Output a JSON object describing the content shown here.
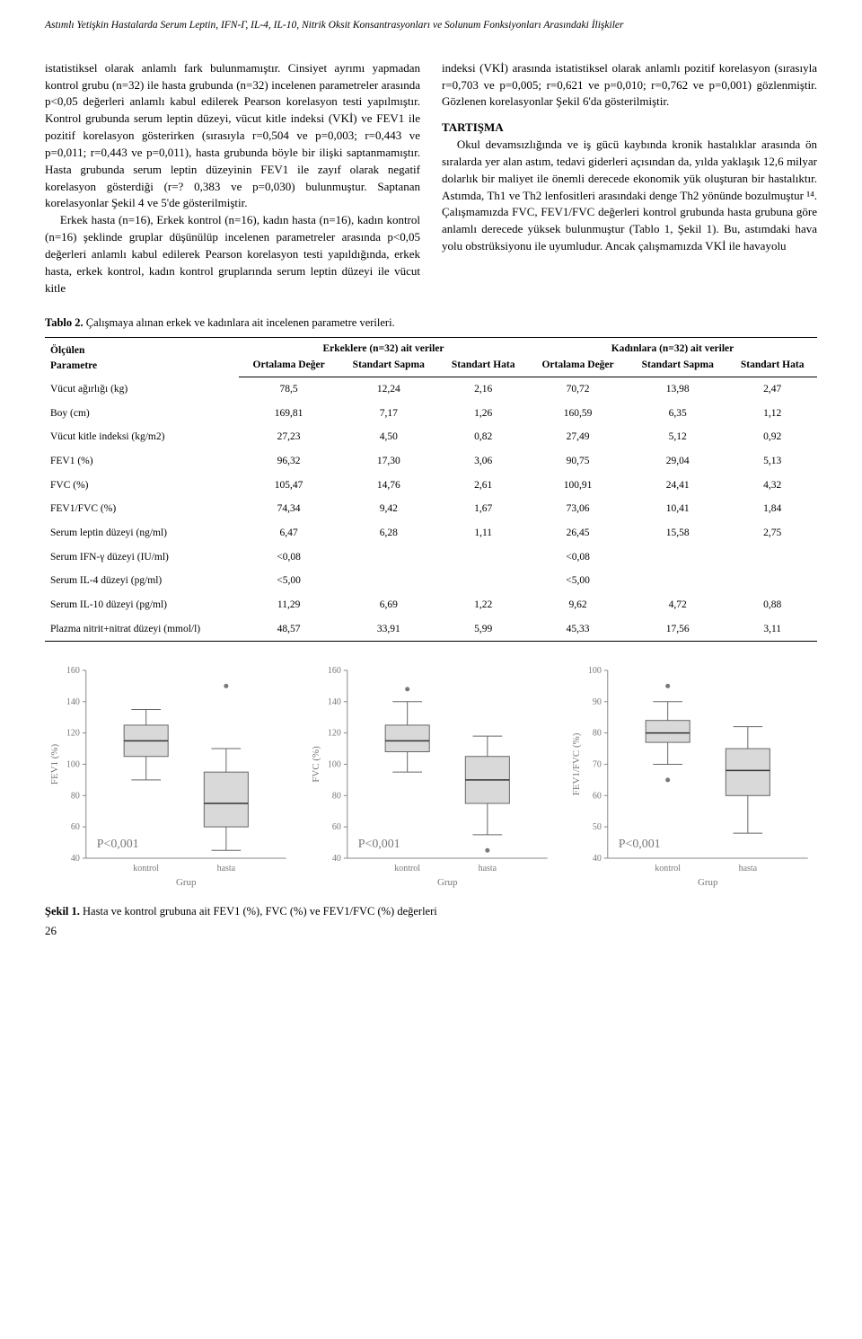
{
  "header": {
    "running_title": "Astımlı Yetişkin Hastalarda Serum Leptin, IFN-Γ, IL-4, IL-10, Nitrik Oksit Konsantrasyonları ve Solunum Fonksiyonları Arasındaki İlişkiler"
  },
  "body": {
    "left_p1": "istatistiksel olarak anlamlı fark bulunmamıştır. Cinsiyet ayrımı yapmadan kontrol grubu (n=32) ile hasta grubunda (n=32) incelenen parametreler arasında p<0,05 değerleri anlamlı kabul edilerek Pearson korelasyon testi yapılmıştır. Kontrol grubunda serum leptin düzeyi, vücut kitle indeksi (VKİ) ve FEV1 ile pozitif korelasyon gösterirken (sırasıyla r=0,504 ve p=0,003; r=0,443 ve p=0,011; r=0,443 ve p=0,011), hasta grubunda böyle bir ilişki saptanmamıştır. Hasta grubunda serum leptin düzeyinin FEV1 ile zayıf olarak negatif korelasyon gösterdiği (r=? 0,383 ve p=0,030) bulunmuştur. Saptanan korelasyonlar Şekil 4 ve 5'de gösterilmiştir.",
    "left_p2": "Erkek hasta (n=16), Erkek kontrol (n=16), kadın hasta (n=16), kadın kontrol (n=16) şeklinde gruplar düşünülüp incelenen parametreler arasında p<0,05 değerleri anlamlı kabul edilerek Pearson korelasyon testi yapıldığında, erkek hasta, erkek kontrol, kadın kontrol gruplarında serum leptin düzeyi ile vücut kitle",
    "right_p1": "indeksi (VKİ) arasında istatistiksel olarak anlamlı pozitif korelasyon (sırasıyla r=0,703 ve p=0,005; r=0,621 ve p=0,010; r=0,762 ve p=0,001) gözlenmiştir. Gözlenen korelasyonlar Şekil 6'da gösterilmiştir.",
    "discussion_head": "TARTIŞMA",
    "right_p2": "Okul devamsızlığında ve iş gücü kaybında kronik hastalıklar arasında ön sıralarda yer alan astım, tedavi giderleri açısından da, yılda yaklaşık 12,6 milyar dolarlık bir maliyet ile önemli derecede ekonomik yük oluşturan bir hastalıktır. Astımda, Th1 ve Th2 lenfositleri arasındaki denge Th2 yönünde bozulmuştur ¹⁴. Çalışmamızda FVC, FEV1/FVC değerleri kontrol grubunda hasta grubuna göre anlamlı derecede yüksek bulunmuştur (Tablo 1, Şekil 1). Bu, astımdaki hava yolu obstrüksiyonu ile uyumludur. Ancak çalışmamızda VKİ ile havayolu"
  },
  "table2": {
    "caption_label": "Tablo 2.",
    "caption_text": " Çalışmaya alınan erkek ve kadınlara ait incelenen parametre verileri.",
    "olculen": "Ölçülen",
    "parametre": "Parametre",
    "group_male": "Erkeklere (n=32) ait veriler",
    "group_female": "Kadınlara (n=32) ait veriler",
    "col_mean": "Ortalama Değer",
    "col_sd": "Standart Sapma",
    "col_se": "Standart Hata",
    "rows": [
      {
        "param": "Vücut ağırlığı (kg)",
        "m_mean": "78,5",
        "m_sd": "12,24",
        "m_se": "2,16",
        "f_mean": "70,72",
        "f_sd": "13,98",
        "f_se": "2,47"
      },
      {
        "param": "Boy (cm)",
        "m_mean": "169,81",
        "m_sd": "7,17",
        "m_se": "1,26",
        "f_mean": "160,59",
        "f_sd": "6,35",
        "f_se": "1,12"
      },
      {
        "param": "Vücut kitle indeksi (kg/m2)",
        "m_mean": "27,23",
        "m_sd": "4,50",
        "m_se": "0,82",
        "f_mean": "27,49",
        "f_sd": "5,12",
        "f_se": "0,92"
      },
      {
        "param": "FEV1 (%)",
        "m_mean": "96,32",
        "m_sd": "17,30",
        "m_se": "3,06",
        "f_mean": "90,75",
        "f_sd": "29,04",
        "f_se": "5,13"
      },
      {
        "param": "FVC (%)",
        "m_mean": "105,47",
        "m_sd": "14,76",
        "m_se": "2,61",
        "f_mean": "100,91",
        "f_sd": "24,41",
        "f_se": "4,32"
      },
      {
        "param": "FEV1/FVC (%)",
        "m_mean": "74,34",
        "m_sd": "9,42",
        "m_se": "1,67",
        "f_mean": "73,06",
        "f_sd": "10,41",
        "f_se": "1,84"
      },
      {
        "param": "Serum leptin düzeyi (ng/ml)",
        "m_mean": "6,47",
        "m_sd": "6,28",
        "m_se": "1,11",
        "f_mean": "26,45",
        "f_sd": "15,58",
        "f_se": "2,75"
      },
      {
        "param": "Serum IFN-γ düzeyi (IU/ml)",
        "m_mean": "<0,08",
        "m_sd": "",
        "m_se": "",
        "f_mean": "<0,08",
        "f_sd": "",
        "f_se": ""
      },
      {
        "param": "Serum IL-4 düzeyi (pg/ml)",
        "m_mean": "<5,00",
        "m_sd": "",
        "m_se": "",
        "f_mean": "<5,00",
        "f_sd": "",
        "f_se": ""
      },
      {
        "param": "Serum IL-10 düzeyi (pg/ml)",
        "m_mean": "11,29",
        "m_sd": "6,69",
        "m_se": "1,22",
        "f_mean": "9,62",
        "f_sd": "4,72",
        "f_se": "0,88"
      },
      {
        "param": "Plazma nitrit+nitrat düzeyi (mmol/l)",
        "m_mean": "48,57",
        "m_sd": "33,91",
        "m_se": "5,99",
        "f_mean": "45,33",
        "f_sd": "17,56",
        "f_se": "3,11"
      }
    ]
  },
  "charts": {
    "common": {
      "box_fill": "#d9d9d9",
      "box_stroke": "#666666",
      "median_stroke": "#333333",
      "whisker_stroke": "#666666",
      "axis_stroke": "#888888",
      "outlier_fill": "#777777",
      "label_color": "#777777",
      "p_label": "P<0,001",
      "p_fontsize": 14,
      "axis_fontsize": 10,
      "x_label": "Grup",
      "x_cat1": "kontrol",
      "x_cat2": "hasta"
    },
    "panels": [
      {
        "y_label": "FEV1 (%)",
        "ylim": [
          40,
          160
        ],
        "ytick_step": 20,
        "boxes": [
          {
            "q1": 105,
            "median": 115,
            "q3": 125,
            "wlo": 90,
            "whi": 135,
            "outliers": []
          },
          {
            "q1": 60,
            "median": 75,
            "q3": 95,
            "wlo": 45,
            "whi": 110,
            "outliers": [
              150
            ]
          }
        ]
      },
      {
        "y_label": "FVC (%)",
        "ylim": [
          40,
          160
        ],
        "ytick_step": 20,
        "boxes": [
          {
            "q1": 108,
            "median": 115,
            "q3": 125,
            "wlo": 95,
            "whi": 140,
            "outliers": [
              148
            ]
          },
          {
            "q1": 75,
            "median": 90,
            "q3": 105,
            "wlo": 55,
            "whi": 118,
            "outliers": [
              45
            ]
          }
        ]
      },
      {
        "y_label": "FEV1/FVC (%)",
        "ylim": [
          40,
          100
        ],
        "ytick_step": 10,
        "boxes": [
          {
            "q1": 77,
            "median": 80,
            "q3": 84,
            "wlo": 70,
            "whi": 90,
            "outliers": [
              95,
              65
            ]
          },
          {
            "q1": 60,
            "median": 68,
            "q3": 75,
            "wlo": 48,
            "whi": 82,
            "outliers": []
          }
        ]
      }
    ]
  },
  "figure1": {
    "label": "Şekil 1.",
    "text": " Hasta ve kontrol grubuna ait FEV1 (%), FVC (%) ve FEV1/FVC (%)  değerleri"
  },
  "page_number": "26"
}
